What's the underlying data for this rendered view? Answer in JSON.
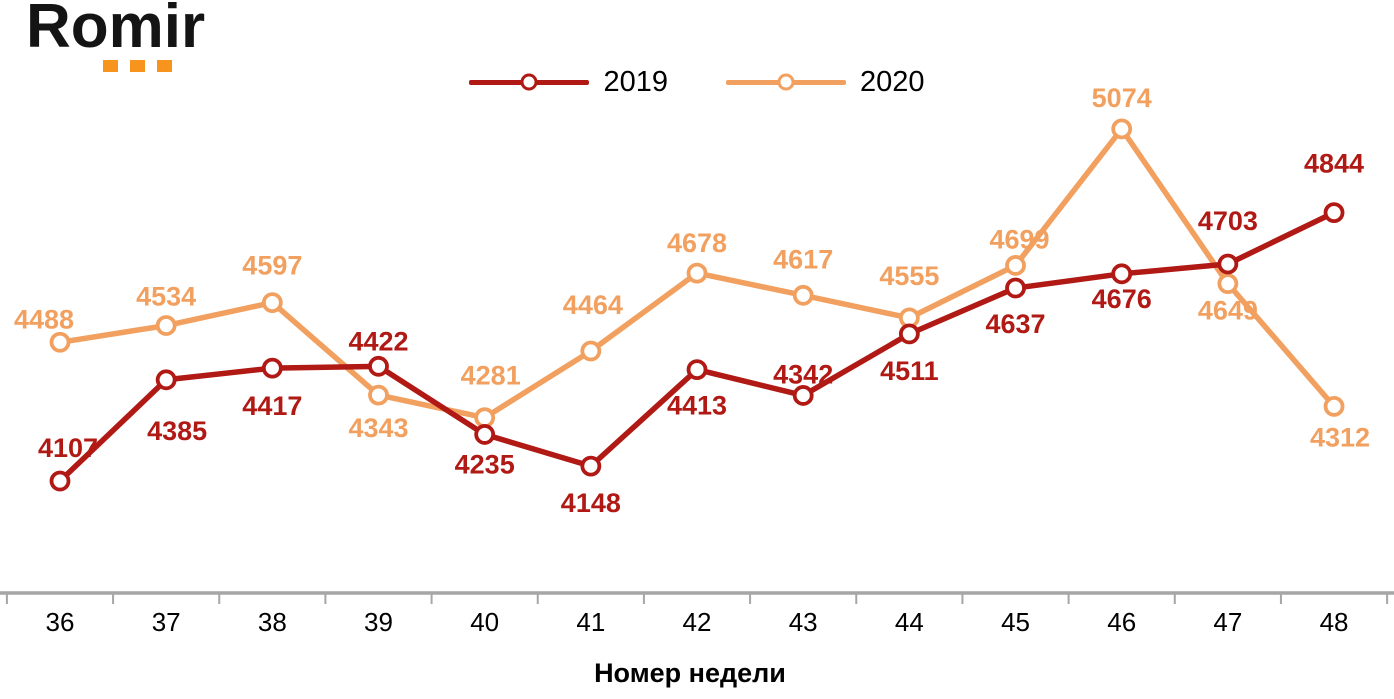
{
  "logo": {
    "text": "Romir",
    "dot_color": "#F7941D"
  },
  "xaxis": {
    "title": "Номер недели"
  },
  "chart_data": {
    "type": "line",
    "x": [
      36,
      37,
      38,
      39,
      40,
      41,
      42,
      43,
      44,
      45,
      46,
      47,
      48
    ],
    "xlabel": "Номер недели",
    "ylabel": "",
    "ylim": [
      4000,
      5200
    ],
    "grid": false,
    "legend_position": "top-center",
    "axis_color": "#A6A6A6",
    "tick_label_color": "#000000",
    "marker": "open-circle",
    "series": [
      {
        "name": "2019",
        "color": "#B11915",
        "values": [
          4107,
          4385,
          4417,
          4422,
          4235,
          4148,
          4413,
          4342,
          4511,
          4637,
          4676,
          4703,
          4844
        ],
        "label_dy": [
          -24,
          60,
          47,
          -16,
          39,
          46,
          45,
          -12,
          46,
          45,
          34,
          -34,
          -40
        ],
        "label_dx": [
          8,
          11,
          0,
          0,
          0,
          0,
          0,
          0,
          0,
          0,
          0,
          0,
          0
        ]
      },
      {
        "name": "2020",
        "color": "#F2A05F",
        "values": [
          4488,
          4534,
          4597,
          4343,
          4281,
          4464,
          4678,
          4617,
          4555,
          4699,
          5074,
          4649,
          4312
        ],
        "label_dy": [
          -14,
          -20,
          -28,
          42,
          -33,
          -37,
          -21,
          -27,
          -33,
          -17,
          -22,
          36,
          40
        ],
        "label_dx": [
          -16,
          0,
          0,
          0,
          6,
          2,
          0,
          0,
          0,
          4,
          0,
          0,
          6
        ]
      }
    ]
  }
}
